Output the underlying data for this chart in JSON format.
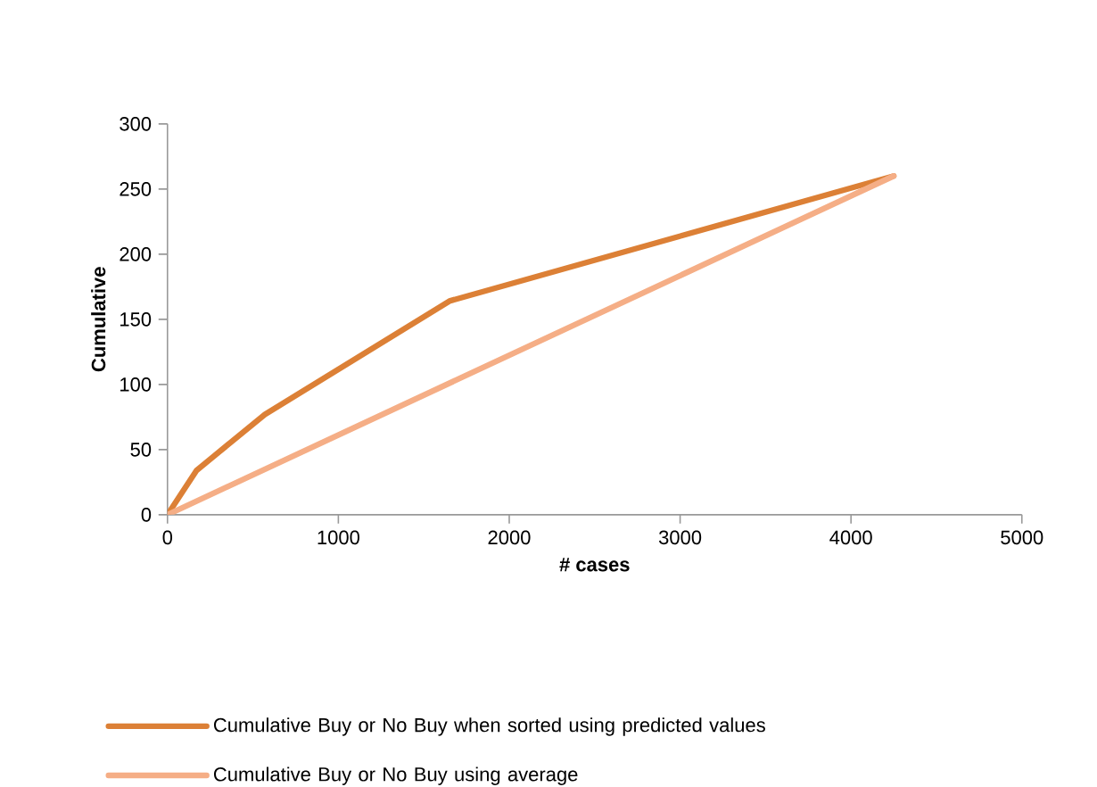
{
  "chart_data": {
    "type": "line",
    "xlabel": "# cases",
    "ylabel": "Cumulative",
    "xlim": [
      0,
      5000
    ],
    "ylim": [
      0,
      300
    ],
    "xticks": [
      0,
      1000,
      2000,
      3000,
      4000,
      5000
    ],
    "yticks": [
      0,
      50,
      100,
      150,
      200,
      250,
      300
    ],
    "grid": false,
    "legend": "bottom",
    "marker": "none",
    "line_style": "solid",
    "series": [
      {
        "name": "Cumulative Buy or No Buy when sorted using predicted values",
        "color": "#dc8036",
        "x": [
          0,
          170,
          570,
          1650,
          4250
        ],
        "values": [
          0,
          34,
          77,
          164,
          260
        ]
      },
      {
        "name": "Cumulative Buy or No Buy using average",
        "color": "#f5ae86",
        "x": [
          0,
          4250
        ],
        "values": [
          0,
          260
        ]
      }
    ]
  }
}
